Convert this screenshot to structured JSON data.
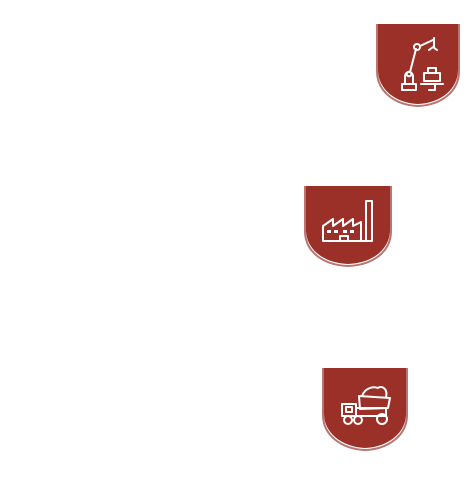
{
  "badges": [
    {
      "icon": "robotic-arm-icon",
      "color": "#9b3028",
      "edge_color": "#b9756f"
    },
    {
      "icon": "factory-icon",
      "color": "#9b3028",
      "edge_color": "#b9756f"
    },
    {
      "icon": "dump-truck-icon",
      "color": "#9b3028",
      "edge_color": "#b9756f"
    }
  ],
  "background": "#ffffff"
}
